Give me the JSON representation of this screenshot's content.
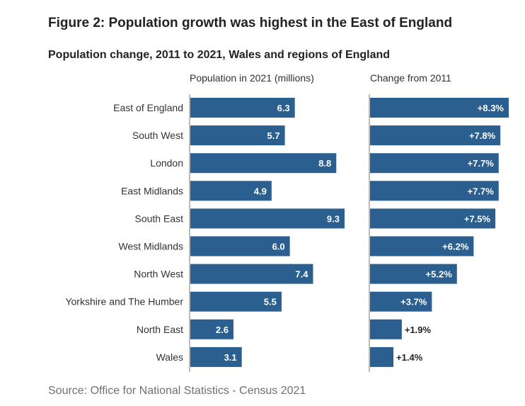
{
  "figure_title": "Figure 2: Population growth was highest in the East of England",
  "subtitle": "Population change, 2011 to 2021, Wales and regions of England",
  "source": "Source: Office for National Statistics - Census 2021",
  "colors": {
    "bar": "#2a5f8f",
    "axis": "#777777",
    "label_inside": "#ffffff",
    "label_outside": "#222222"
  },
  "chart_data": [
    {
      "type": "bar",
      "orientation": "horizontal",
      "title": "Population in 2021 (millions)",
      "categories": [
        "East of England",
        "South West",
        "London",
        "East Midlands",
        "South East",
        "West Midlands",
        "North West",
        "Yorkshire and The Humber",
        "North East",
        "Wales"
      ],
      "values": [
        6.3,
        5.7,
        8.8,
        4.9,
        9.3,
        6.0,
        7.4,
        5.5,
        2.6,
        3.1
      ],
      "value_labels": [
        "6.3",
        "5.7",
        "8.8",
        "4.9",
        "9.3",
        "6.0",
        "7.4",
        "5.5",
        "2.6",
        "3.1"
      ],
      "xlim": [
        0,
        9.3
      ],
      "grid": false
    },
    {
      "type": "bar",
      "orientation": "horizontal",
      "title": "Change from 2011",
      "categories": [
        "East of England",
        "South West",
        "London",
        "East Midlands",
        "South East",
        "West Midlands",
        "North West",
        "Yorkshire and The Humber",
        "North East",
        "Wales"
      ],
      "values": [
        8.3,
        7.8,
        7.7,
        7.7,
        7.5,
        6.2,
        5.2,
        3.7,
        1.9,
        1.4
      ],
      "value_labels": [
        "+8.3%",
        "+7.8%",
        "+7.7%",
        "+7.7%",
        "+7.5%",
        "+6.2%",
        "+5.2%",
        "+3.7%",
        "+1.9%",
        "+1.4%"
      ],
      "unit": "%",
      "xlim": [
        0,
        8.3
      ],
      "grid": false
    }
  ]
}
